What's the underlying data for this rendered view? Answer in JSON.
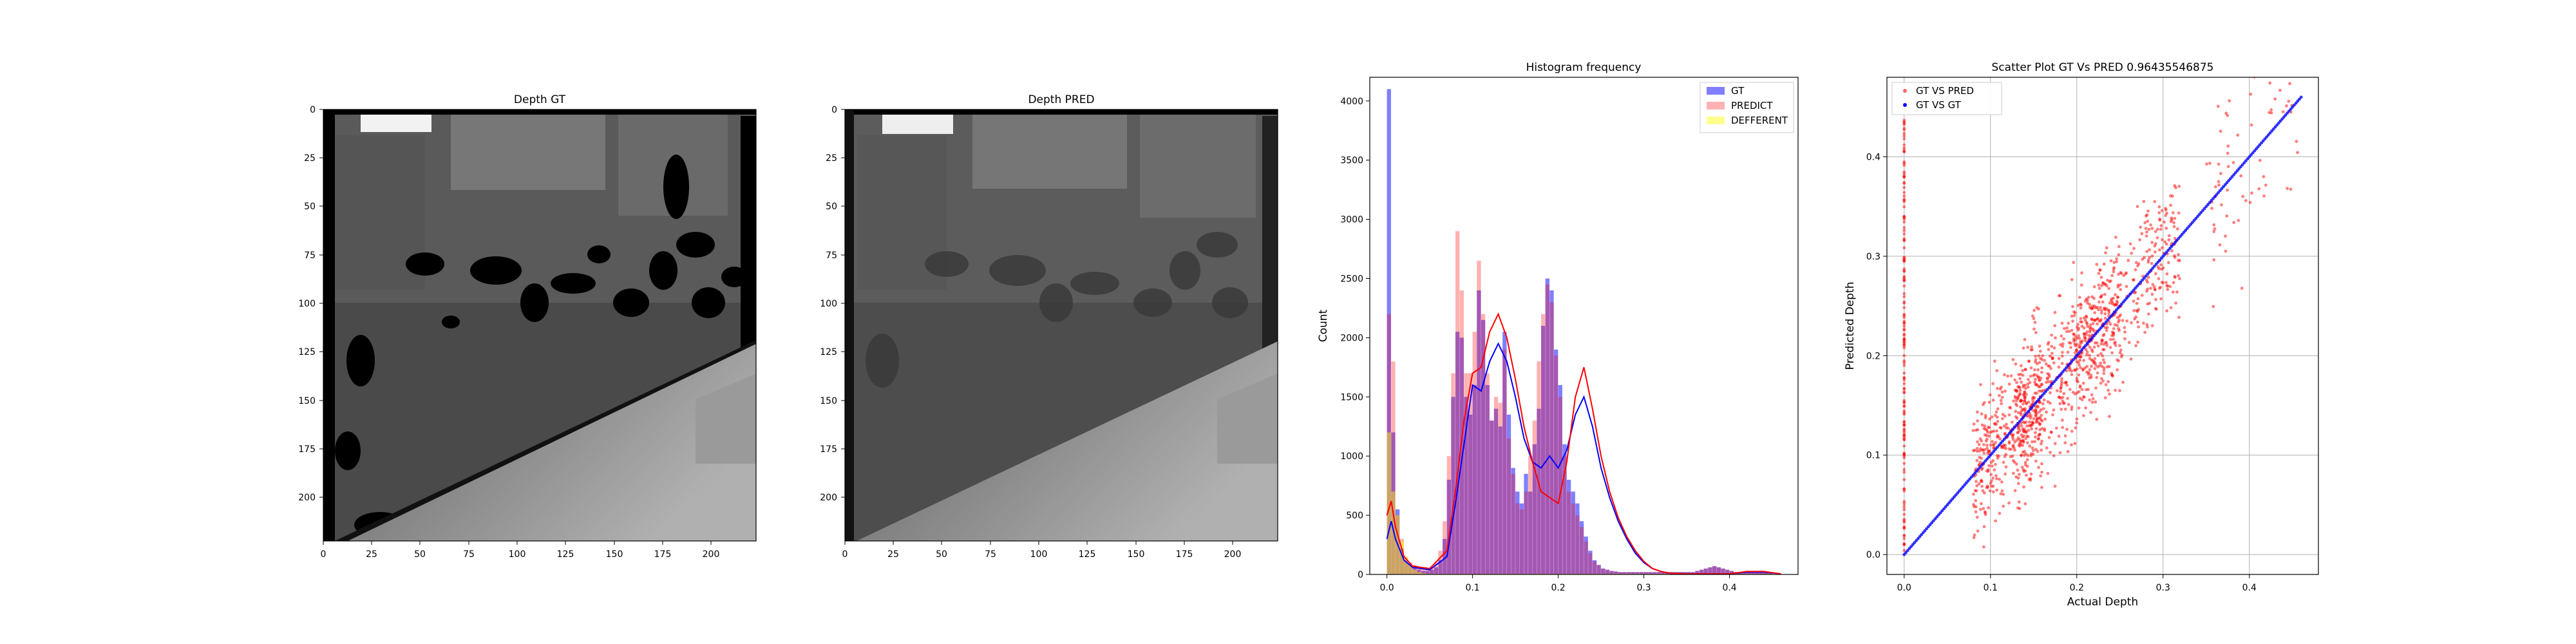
{
  "colors": {
    "gt": "#0000ff",
    "predict": "#ff0000",
    "different": "#ffff00",
    "kde_gt": "#0000ff",
    "kde_pred": "#ff0000",
    "grid": "#b0b0b0"
  },
  "chart_data": [
    {
      "type": "heatmap",
      "title": "Depth GT",
      "xlabel": "",
      "ylabel": "",
      "xlim": [
        0,
        223
      ],
      "ylim": [
        223,
        0
      ],
      "xticks": [
        0,
        25,
        50,
        75,
        100,
        125,
        150,
        175,
        200
      ],
      "yticks": [
        0,
        25,
        50,
        75,
        100,
        125,
        150,
        175,
        200
      ],
      "colormap": "gray",
      "description_regions": "depth image with black invalid holes"
    },
    {
      "type": "heatmap",
      "title": "Depth PRED",
      "xlabel": "",
      "ylabel": "",
      "xlim": [
        0,
        223
      ],
      "ylim": [
        223,
        0
      ],
      "xticks": [
        0,
        25,
        50,
        75,
        100,
        125,
        150,
        175,
        200
      ],
      "yticks": [
        0,
        25,
        50,
        75,
        100,
        125,
        150,
        175,
        200
      ],
      "colormap": "gray"
    },
    {
      "type": "bar",
      "title": "Histogram frequency",
      "xlabel": "",
      "ylabel": "Count",
      "xlim": [
        -0.02,
        0.48
      ],
      "ylim": [
        0,
        4200
      ],
      "xticks": [
        0.0,
        0.1,
        0.2,
        0.3,
        0.4
      ],
      "yticks": [
        0,
        500,
        1000,
        1500,
        2000,
        2500,
        3000,
        3500,
        4000
      ],
      "legend_position": "top-right",
      "bin_centers": [
        0.0025,
        0.0075,
        0.0125,
        0.0175,
        0.0225,
        0.0275,
        0.0325,
        0.0375,
        0.0425,
        0.0475,
        0.0525,
        0.0575,
        0.0625,
        0.0675,
        0.0725,
        0.0775,
        0.0825,
        0.0875,
        0.0925,
        0.0975,
        0.1025,
        0.1075,
        0.1125,
        0.1175,
        0.1225,
        0.1275,
        0.1325,
        0.1375,
        0.1425,
        0.1475,
        0.1525,
        0.1575,
        0.1625,
        0.1675,
        0.1725,
        0.1775,
        0.1825,
        0.1875,
        0.1925,
        0.1975,
        0.2025,
        0.2075,
        0.2125,
        0.2175,
        0.2225,
        0.2275,
        0.2325,
        0.2375,
        0.2425,
        0.2475,
        0.2525,
        0.2575,
        0.2625,
        0.2675,
        0.2725,
        0.2775,
        0.2825,
        0.2875,
        0.2925,
        0.2975,
        0.3025,
        0.3075,
        0.3125,
        0.3175,
        0.3225,
        0.3275,
        0.3325,
        0.3375,
        0.3425,
        0.3475,
        0.3525,
        0.3575,
        0.3625,
        0.3675,
        0.3725,
        0.3775,
        0.3825,
        0.3875,
        0.3925,
        0.3975,
        0.4025,
        0.4075,
        0.4125,
        0.4175,
        0.4225,
        0.4275,
        0.4325,
        0.4375,
        0.4425,
        0.4475
      ],
      "series": [
        {
          "name": "GT",
          "values": [
            4100,
            1200,
            550,
            220,
            120,
            80,
            60,
            40,
            30,
            30,
            40,
            60,
            120,
            300,
            800,
            1500,
            2050,
            2000,
            1500,
            1350,
            1600,
            2400,
            2150,
            1600,
            1300,
            1400,
            1250,
            2050,
            1350,
            900,
            700,
            600,
            850,
            700,
            1100,
            1400,
            2100,
            2500,
            2400,
            1900,
            1600,
            1100,
            800,
            700,
            600,
            450,
            320,
            200,
            120,
            80,
            50,
            40,
            30,
            25,
            20,
            20,
            20,
            20,
            20,
            20,
            20,
            20,
            20,
            20,
            20,
            20,
            20,
            20,
            20,
            20,
            20,
            20,
            30,
            40,
            50,
            60,
            70,
            60,
            50,
            40,
            30,
            20,
            20,
            20,
            20,
            20,
            20,
            20,
            20,
            20
          ]
        },
        {
          "name": "PREDICT",
          "values": [
            2200,
            1800,
            500,
            300,
            150,
            100,
            80,
            60,
            50,
            50,
            60,
            100,
            200,
            450,
            1000,
            1700,
            2900,
            2400,
            1700,
            1700,
            2050,
            2650,
            2200,
            1700,
            1300,
            1500,
            1450,
            1900,
            1150,
            850,
            600,
            550,
            700,
            1000,
            1300,
            1800,
            2200,
            2450,
            2300,
            1850,
            1500,
            1000,
            700,
            600,
            500,
            400,
            280,
            180,
            110,
            80,
            50,
            40,
            30,
            25,
            20,
            20,
            20,
            20,
            20,
            20,
            20,
            20,
            20,
            20,
            20,
            20,
            20,
            20,
            20,
            20,
            20,
            20,
            30,
            40,
            50,
            60,
            70,
            60,
            50,
            40,
            30,
            20,
            20,
            20,
            20,
            20,
            20,
            20,
            20,
            20
          ]
        },
        {
          "name": "DEFFERENT",
          "values": [
            1200,
            700,
            500,
            280,
            150,
            80,
            40,
            20,
            10,
            5,
            5,
            5,
            5,
            5,
            5,
            5,
            5,
            5,
            5,
            5,
            5,
            5,
            5,
            5,
            5,
            5,
            5,
            5,
            5,
            5,
            5,
            5,
            5,
            5,
            5,
            5,
            5,
            5,
            5,
            5,
            5,
            5,
            5,
            5,
            5,
            5,
            5,
            5,
            5,
            5,
            5,
            5,
            5,
            5,
            5,
            5,
            5,
            5,
            5,
            5,
            5,
            5,
            5,
            5,
            5,
            5,
            5,
            5,
            5,
            5,
            5,
            5,
            5,
            5,
            5,
            5,
            5,
            5,
            5,
            5,
            5,
            5,
            5,
            5,
            5,
            5,
            5,
            5,
            5,
            5
          ]
        }
      ],
      "kde_gt": {
        "x": [
          0,
          0.005,
          0.01,
          0.02,
          0.03,
          0.05,
          0.07,
          0.08,
          0.09,
          0.1,
          0.11,
          0.12,
          0.13,
          0.14,
          0.15,
          0.16,
          0.17,
          0.18,
          0.19,
          0.2,
          0.21,
          0.22,
          0.23,
          0.24,
          0.25,
          0.26,
          0.27,
          0.28,
          0.29,
          0.3,
          0.31,
          0.32,
          0.33,
          0.35,
          0.38,
          0.4,
          0.42,
          0.44,
          0.46
        ],
        "y": [
          300,
          450,
          300,
          120,
          60,
          40,
          150,
          600,
          1100,
          1600,
          1550,
          1800,
          1950,
          1800,
          1500,
          1150,
          950,
          900,
          1000,
          900,
          1050,
          1350,
          1500,
          1250,
          900,
          650,
          450,
          300,
          180,
          100,
          50,
          25,
          10,
          5,
          5,
          5,
          20,
          20,
          5
        ]
      },
      "kde_pred": {
        "x": [
          0,
          0.005,
          0.01,
          0.02,
          0.03,
          0.05,
          0.07,
          0.08,
          0.09,
          0.1,
          0.11,
          0.12,
          0.13,
          0.14,
          0.15,
          0.16,
          0.17,
          0.18,
          0.19,
          0.2,
          0.21,
          0.22,
          0.23,
          0.24,
          0.25,
          0.26,
          0.27,
          0.28,
          0.29,
          0.3,
          0.31,
          0.32,
          0.33,
          0.35,
          0.38,
          0.4,
          0.42,
          0.44,
          0.46
        ],
        "y": [
          500,
          620,
          400,
          150,
          70,
          50,
          200,
          700,
          1300,
          1700,
          1750,
          2050,
          2200,
          2000,
          1650,
          1250,
          950,
          700,
          650,
          600,
          950,
          1500,
          1750,
          1400,
          1000,
          700,
          480,
          320,
          200,
          110,
          50,
          25,
          10,
          5,
          5,
          5,
          25,
          25,
          5
        ]
      }
    },
    {
      "type": "scatter",
      "title": "Scatter Plot GT Vs PRED 0.96435546875",
      "xlabel": "Actual Depth",
      "ylabel": "Predicted Depth",
      "xlim": [
        -0.02,
        0.48
      ],
      "ylim": [
        -0.02,
        0.48
      ],
      "xticks": [
        0.0,
        0.1,
        0.2,
        0.3,
        0.4
      ],
      "yticks": [
        0.0,
        0.1,
        0.2,
        0.3,
        0.4
      ],
      "grid": true,
      "legend_position": "top-left",
      "series": [
        {
          "name": "GT VS PRED",
          "description": "red points clustered along diagonal with spread"
        },
        {
          "name": "GT VS GT",
          "description": "blue points on y = x line from 0 to 0.46"
        }
      ]
    }
  ],
  "panel1": {
    "title": "Depth GT"
  },
  "panel2": {
    "title": "Depth PRED"
  },
  "panel3": {
    "title": "Histogram frequency",
    "ylabel": "Count",
    "legend": [
      "GT",
      "PREDICT",
      "DEFFERENT"
    ]
  },
  "panel4": {
    "title": "Scatter Plot GT Vs PRED 0.96435546875",
    "xlabel": "Actual Depth",
    "ylabel": "Predicted Depth",
    "legend": [
      "GT VS PRED",
      "GT VS GT"
    ]
  }
}
